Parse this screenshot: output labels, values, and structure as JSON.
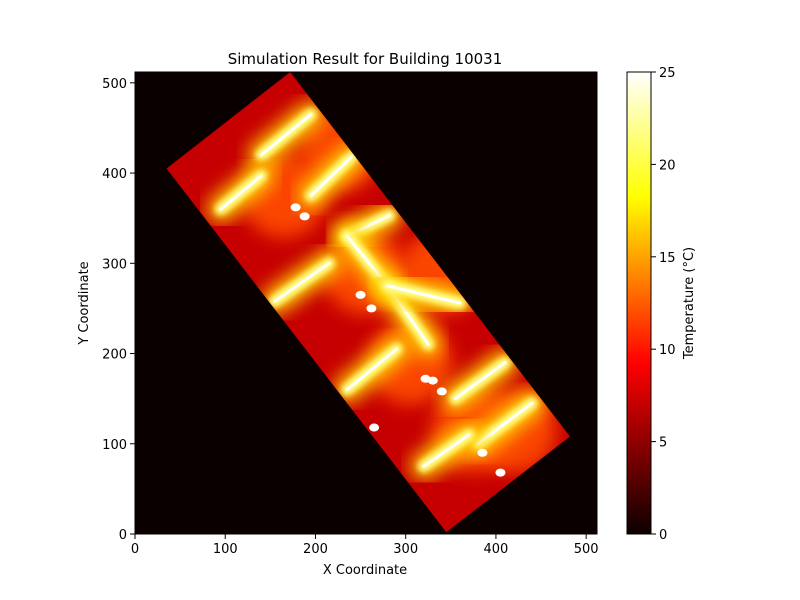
{
  "chart_data": {
    "type": "heatmap",
    "title": "Simulation Result for Building 10031",
    "xlabel": "X Coordinate",
    "ylabel": "Y Coordinate",
    "xlim": [
      0,
      512
    ],
    "ylim": [
      0,
      512
    ],
    "x_ticks": [
      0,
      100,
      200,
      300,
      400,
      500
    ],
    "y_ticks": [
      0,
      100,
      200,
      300,
      400,
      500
    ],
    "colormap": "hot",
    "colorbar": {
      "label": "Temperature (°C)",
      "range": [
        0,
        25
      ],
      "ticks": [
        0,
        5,
        10,
        15,
        20,
        25
      ]
    },
    "background_value": 0,
    "building_footprint": [
      [
        35,
        405
      ],
      [
        172,
        512
      ],
      [
        482,
        108
      ],
      [
        345,
        2
      ]
    ],
    "wall_value": 7,
    "rooms": [
      {
        "center": [
          228,
          427
        ],
        "peak": 25
      },
      {
        "center": [
          255,
          290
        ],
        "peak": 25
      },
      {
        "center": [
          340,
          290
        ],
        "peak": 25
      },
      {
        "center": [
          420,
          115
        ],
        "peak": 25
      },
      {
        "center": [
          165,
          375
        ],
        "peak": 25
      },
      {
        "center": [
          305,
          190
        ],
        "peak": 25
      },
      {
        "center": [
          375,
          115
        ],
        "peak": 25
      }
    ],
    "heat_sources": [
      {
        "from": [
          140,
          420
        ],
        "to": [
          195,
          465
        ],
        "value": 25
      },
      {
        "from": [
          195,
          375
        ],
        "to": [
          240,
          418
        ],
        "value": 25
      },
      {
        "from": [
          95,
          360
        ],
        "to": [
          140,
          397
        ],
        "value": 25
      },
      {
        "from": [
          235,
          330
        ],
        "to": [
          282,
          353
        ],
        "value": 25
      },
      {
        "from": [
          235,
          330
        ],
        "to": [
          280,
          275
        ],
        "value": 25
      },
      {
        "from": [
          155,
          258
        ],
        "to": [
          215,
          300
        ],
        "value": 25
      },
      {
        "from": [
          280,
          275
        ],
        "to": [
          325,
          210
        ],
        "value": 25
      },
      {
        "from": [
          280,
          275
        ],
        "to": [
          360,
          256
        ],
        "value": 25
      },
      {
        "from": [
          235,
          160
        ],
        "to": [
          290,
          205
        ],
        "value": 25
      },
      {
        "from": [
          355,
          150
        ],
        "to": [
          410,
          190
        ],
        "value": 25
      },
      {
        "from": [
          380,
          100
        ],
        "to": [
          440,
          145
        ],
        "value": 25
      },
      {
        "from": [
          320,
          75
        ],
        "to": [
          370,
          110
        ],
        "value": 25
      }
    ],
    "hot_spots": [
      [
        178,
        362
      ],
      [
        188,
        352
      ],
      [
        250,
        265
      ],
      [
        262,
        250
      ],
      [
        330,
        170
      ],
      [
        340,
        158
      ],
      [
        265,
        118
      ],
      [
        385,
        90
      ],
      [
        405,
        68
      ],
      [
        322,
        172
      ]
    ]
  }
}
